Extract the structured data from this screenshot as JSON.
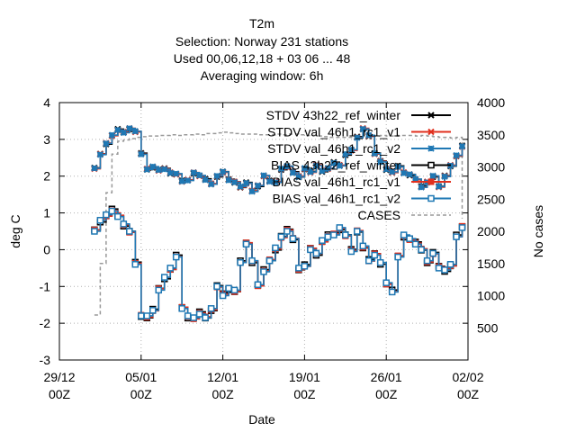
{
  "chart_data": {
    "type": "line",
    "title_lines": [
      "T2m",
      "Selection: Norway    231 stations",
      "Used  00,06,12,18  + 03 06 ... 48",
      "Averaging window:  6h"
    ],
    "xlabel": "Date",
    "ylabel": "deg C",
    "y2label": "No cases",
    "x_range": [
      "2024-12-29T00",
      "2025-02-02T00"
    ],
    "x_ticks": [
      {
        "date": "2024-12-29T00",
        "line1": "29/12",
        "line2": "00Z"
      },
      {
        "date": "2025-01-05T00",
        "line1": "05/01",
        "line2": "00Z"
      },
      {
        "date": "2025-01-12T00",
        "line1": "12/01",
        "line2": "00Z"
      },
      {
        "date": "2025-01-19T00",
        "line1": "19/01",
        "line2": "00Z"
      },
      {
        "date": "2025-01-26T00",
        "line1": "26/01",
        "line2": "00Z"
      },
      {
        "date": "2025-02-02T00",
        "line1": "02/02",
        "line2": "00Z"
      }
    ],
    "ylim": [
      -3,
      4
    ],
    "y_ticks": [
      "-3",
      "-2",
      "-1",
      "0",
      "1",
      "2",
      "3",
      "4"
    ],
    "y2lim": [
      0,
      4000
    ],
    "y2_ticks": [
      "500",
      "1000",
      "1500",
      "2000",
      "2500",
      "3000",
      "3500",
      "4000"
    ],
    "grid": true,
    "legend_position": "top-right",
    "series": [
      {
        "name": "STDV 43h22_ref_winter",
        "color": "#000000",
        "marker": "cross",
        "axis": "y1",
        "group": "stdv",
        "offset": 0.03
      },
      {
        "name": "STDV val_46h1_rc1_v1",
        "color": "#e0301e",
        "marker": "x",
        "axis": "y1",
        "group": "stdv",
        "offset": 0.0
      },
      {
        "name": "STDV val_46h1_rc1_v2",
        "color": "#1f78b4",
        "marker": "star",
        "axis": "y1",
        "group": "stdv",
        "offset": -0.02
      },
      {
        "name": "BIAS 43h22_ref_winter",
        "color": "#000000",
        "marker": "square",
        "axis": "y1",
        "group": "bias",
        "offset": 0.06
      },
      {
        "name": "BIAS val_46h1_rc1_v1",
        "color": "#e0301e",
        "marker": "filled-square",
        "axis": "y1",
        "group": "bias",
        "offset": -0.04
      },
      {
        "name": "BIAS val_46h1_rc1_v2",
        "color": "#1f78b4",
        "marker": "square",
        "axis": "y1",
        "group": "bias",
        "offset": 0.0
      },
      {
        "name": "CASES",
        "color": "#999999",
        "marker": "none",
        "dash": true,
        "axis": "y2",
        "group": "cases",
        "offset": 0
      }
    ],
    "x": [
      "2025-01-01T00",
      "2025-01-01T12",
      "2025-01-02T00",
      "2025-01-02T12",
      "2025-01-03T00",
      "2025-01-03T12",
      "2025-01-04T00",
      "2025-01-04T12",
      "2025-01-05T00",
      "2025-01-05T12",
      "2025-01-06T00",
      "2025-01-06T12",
      "2025-01-07T00",
      "2025-01-07T12",
      "2025-01-08T00",
      "2025-01-08T12",
      "2025-01-09T00",
      "2025-01-09T12",
      "2025-01-10T00",
      "2025-01-10T12",
      "2025-01-11T00",
      "2025-01-11T12",
      "2025-01-12T00",
      "2025-01-12T12",
      "2025-01-13T00",
      "2025-01-13T12",
      "2025-01-14T00",
      "2025-01-14T12",
      "2025-01-15T00",
      "2025-01-15T12",
      "2025-01-16T00",
      "2025-01-16T12",
      "2025-01-17T00",
      "2025-01-17T12",
      "2025-01-18T00",
      "2025-01-18T12",
      "2025-01-19T00",
      "2025-01-19T12",
      "2025-01-20T00",
      "2025-01-20T12",
      "2025-01-21T00",
      "2025-01-21T12",
      "2025-01-22T00",
      "2025-01-22T12",
      "2025-01-23T00",
      "2025-01-23T12",
      "2025-01-24T00",
      "2025-01-24T12",
      "2025-01-25T00",
      "2025-01-25T12",
      "2025-01-26T00",
      "2025-01-26T12",
      "2025-01-27T00",
      "2025-01-27T12",
      "2025-01-28T00",
      "2025-01-28T12",
      "2025-01-29T00",
      "2025-01-29T12",
      "2025-01-30T00",
      "2025-01-30T12",
      "2025-01-31T00",
      "2025-01-31T12",
      "2025-02-01T00",
      "2025-02-01T12"
    ],
    "stdv": [
      2.2,
      2.6,
      2.9,
      3.1,
      3.25,
      3.2,
      3.3,
      3.2,
      2.6,
      2.2,
      2.25,
      2.15,
      2.2,
      2.1,
      2.05,
      1.85,
      1.9,
      2.1,
      2.0,
      1.9,
      1.8,
      2.0,
      2.1,
      1.9,
      1.85,
      1.7,
      1.8,
      1.6,
      1.75,
      2.0,
      1.85,
      1.85,
      2.2,
      2.25,
      2.1,
      2.0,
      2.2,
      2.1,
      2.3,
      2.15,
      2.2,
      2.35,
      2.3,
      2.6,
      2.7,
      3.05,
      3.3,
      3.1,
      2.6,
      2.4,
      2.2,
      2.1,
      2.25,
      2.1,
      2.05,
      1.9,
      1.7,
      1.85,
      2.0,
      1.7,
      2.0,
      2.3,
      2.55,
      2.8
    ],
    "bias": [
      0.5,
      0.8,
      0.95,
      1.05,
      0.9,
      0.7,
      0.5,
      -0.4,
      -1.8,
      -1.8,
      -1.65,
      -1.1,
      -0.75,
      -0.5,
      -0.2,
      -1.6,
      -1.8,
      -1.85,
      -1.75,
      -1.85,
      -1.6,
      -1.0,
      -1.25,
      -1.05,
      -1.1,
      -0.35,
      0.15,
      -0.3,
      -0.95,
      -0.6,
      -0.3,
      0.05,
      0.35,
      0.5,
      0.3,
      -0.5,
      -0.45,
      0.0,
      -0.1,
      0.25,
      0.35,
      0.4,
      0.6,
      0.4,
      -0.05,
      0.5,
      0.1,
      -0.3,
      -0.15,
      -0.35,
      -0.9,
      -1.15,
      -0.2,
      0.4,
      0.3,
      0.15,
      0.0,
      -0.3,
      -0.1,
      -0.5,
      -0.55,
      -0.4,
      0.35,
      0.6
    ],
    "cases": [
      700,
      1500,
      2600,
      3200,
      3400,
      3420,
      3440,
      3460,
      3470,
      3480,
      3480,
      3490,
      3490,
      3500,
      3490,
      3500,
      3500,
      3510,
      3500,
      3520,
      3520,
      3530,
      3540,
      3530,
      3520,
      3510,
      3510,
      3510,
      3500,
      3500,
      3500,
      3510,
      3500,
      3510,
      3510,
      3500,
      3490,
      3490,
      3480,
      3470,
      3460,
      3460,
      3460,
      3460,
      3460,
      3470,
      3480,
      3480,
      3480,
      3490,
      3480,
      3480,
      3490,
      3490,
      3490,
      3480,
      3490,
      3480,
      3470,
      3460,
      3460,
      3450,
      3460,
      2200
    ]
  }
}
